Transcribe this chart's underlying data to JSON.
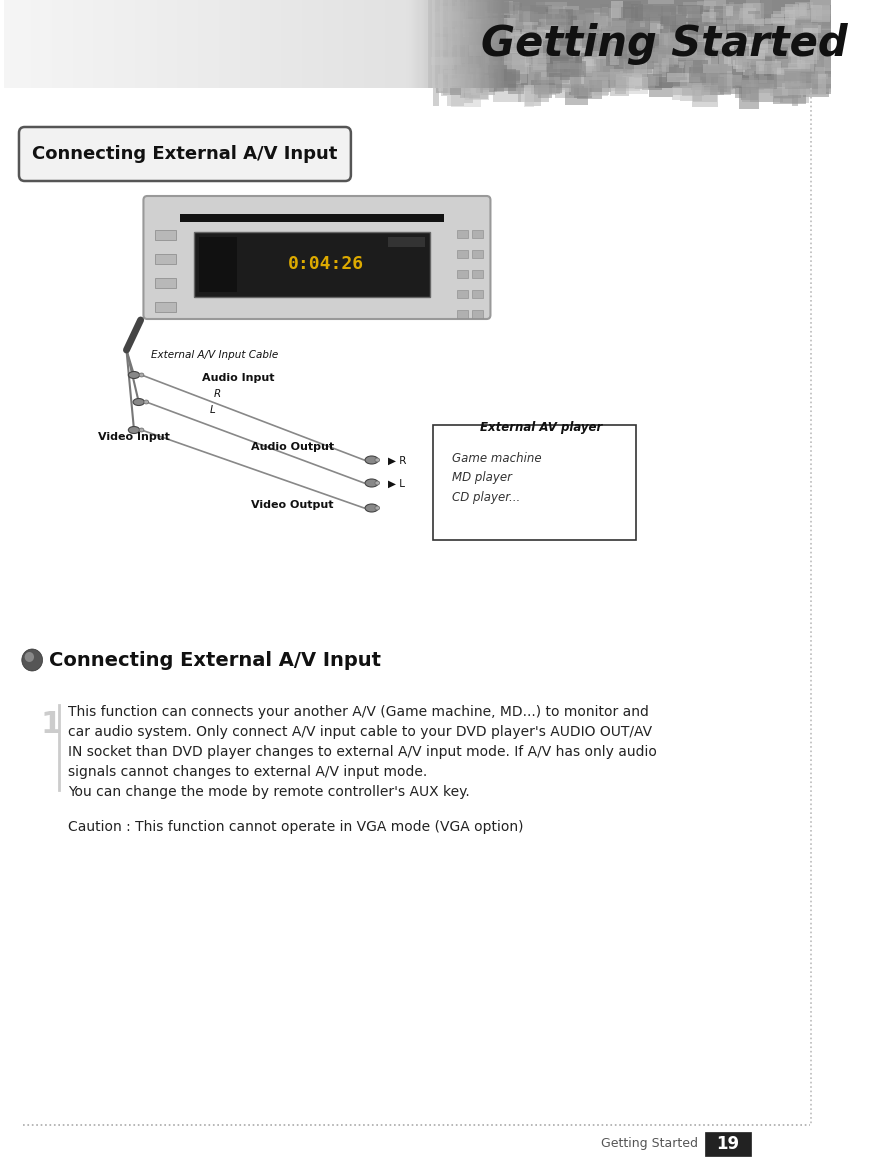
{
  "title": "Getting Started",
  "section_title": "Connecting External A/V Input",
  "section2_title": "Connecting External A/V Input",
  "body_text": "This function can connects your another A/V (Game machine, MD...) to monitor and\ncar audio system. Only connect A/V input cable to your DVD player's AUDIO OUT/AV\nIN socket than DVD player changes to external A/V input mode. If A/V has only audio\nsignals cannot changes to external A/V input mode.\nYou can change the mode by remote controller's AUX key.",
  "caution_text": "Caution : This function cannot operate in VGA mode (VGA option)",
  "footer_text": "Getting Started",
  "page_number": "19",
  "external_av_player_label": "External AV player",
  "external_av_cable_label": "External A/V Input Cable",
  "audio_input_label": "Audio Input",
  "audio_output_label": "Audio Output",
  "video_input_label": "Video Input",
  "video_output_label": "Video Output",
  "r_label": "R",
  "l_label": "L",
  "r2_label": "R",
  "l2_label": "L",
  "av_player_items": "Game machine\nMD player\nCD player...",
  "bg_color": "#ffffff",
  "text_color": "#222222",
  "dotted_line_color": "#bbbbbb"
}
